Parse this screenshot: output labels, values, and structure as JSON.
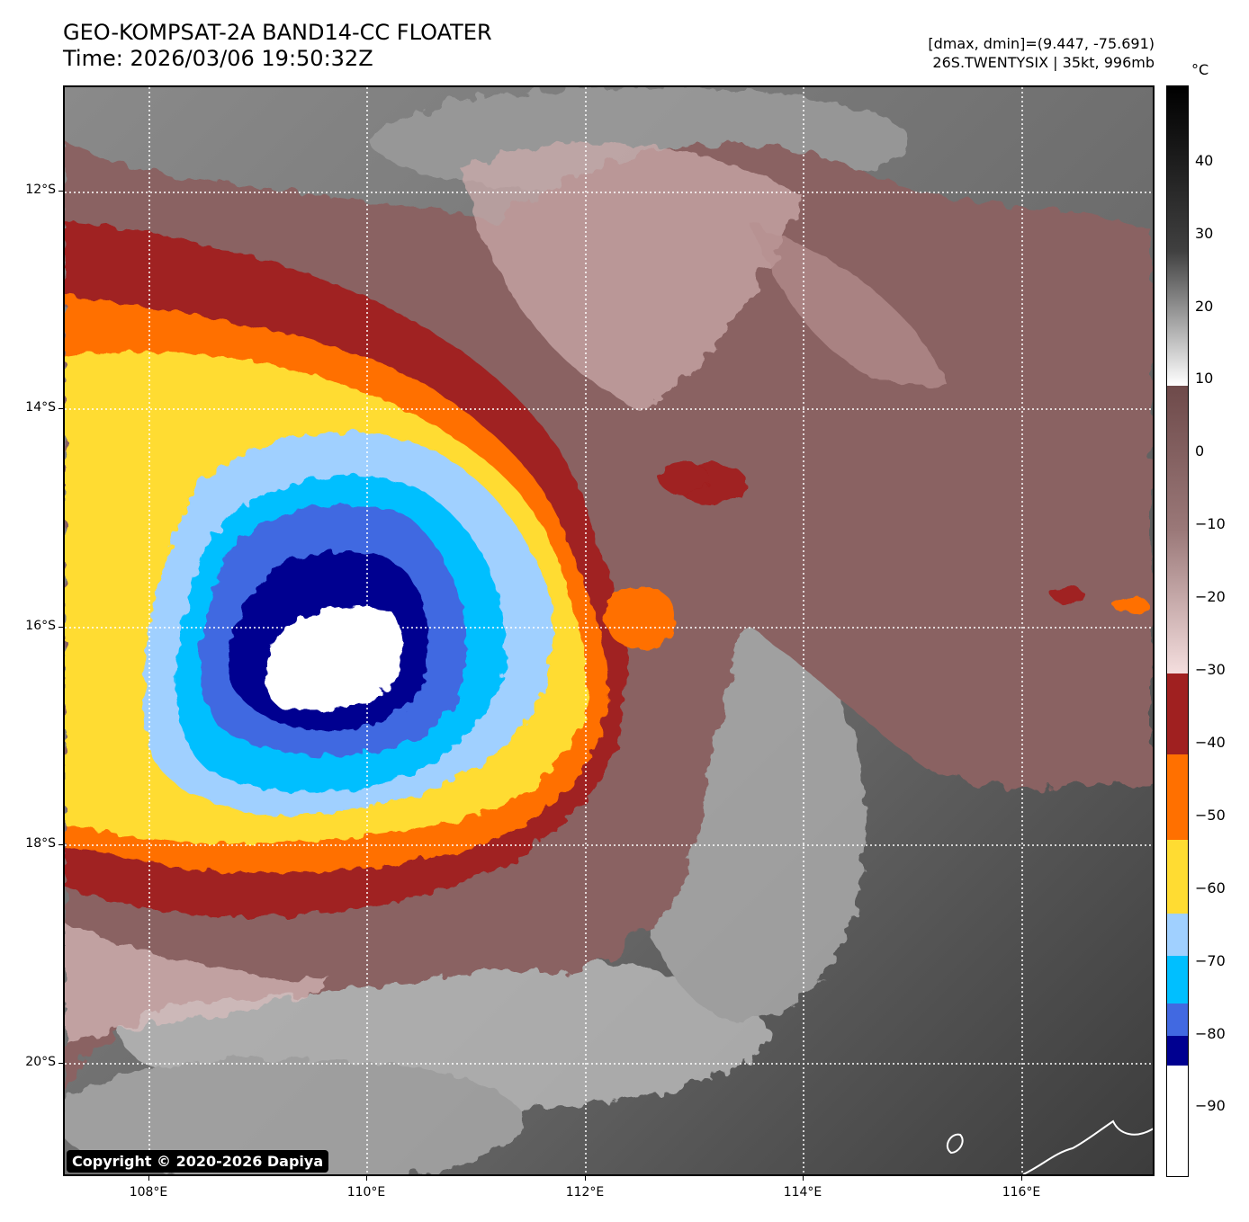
{
  "header": {
    "title_line1": "GEO-KOMPSAT-2A BAND14-CC FLOATER",
    "title_line2": "Time: 2026/03/06 19:50:32Z",
    "stats_line": "[dmax, dmin]=(9.447, -75.691)",
    "storm_line": "26S.TWENTYSIX | 35kt, 996mb"
  },
  "map": {
    "copyright": "Copyright © 2020-2026 Dapiya",
    "lat_labels": [
      "12°S",
      "14°S",
      "16°S",
      "18°S",
      "20°S"
    ],
    "lon_labels": [
      "108°E",
      "110°E",
      "112°E",
      "114°E",
      "116°E"
    ]
  },
  "colorbar": {
    "unit": "°C",
    "tick_labels": [
      "40",
      "30",
      "20",
      "10",
      "0",
      "−10",
      "−20",
      "−30",
      "−40",
      "−50",
      "−60",
      "−70",
      "−80",
      "−90"
    ],
    "colors": {
      "white": "#ffffff",
      "navy": "#000090",
      "royal_blue": "#4169e1",
      "sky_blue": "#00bfff",
      "light_blue": "#a0d0ff",
      "yellow": "#ffdc32",
      "orange": "#ff7000",
      "dark_red": "#a02020",
      "mauve": "#8a6262",
      "gray": "#7a7a7a"
    }
  }
}
